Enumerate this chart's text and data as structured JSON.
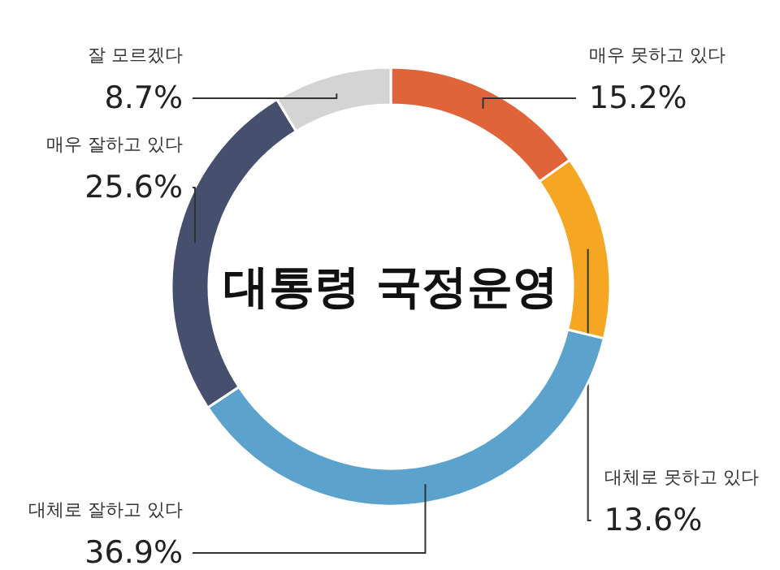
{
  "chart_data": {
    "type": "donut",
    "title": "대통령 국정운영",
    "categories": [
      "매우 못하고 있다",
      "대체로 못하고 있다",
      "대체로 잘하고 있다",
      "매우 잘하고 있다",
      "잘 모르겠다"
    ],
    "values": [
      15.2,
      13.6,
      36.9,
      25.6,
      8.7
    ],
    "colors": [
      "#e0643a",
      "#f5a623",
      "#5ba3cc",
      "#46506e",
      "#d4d4d4"
    ],
    "value_labels": [
      "15.2%",
      "13.6%",
      "36.9%",
      "25.6%",
      "8.7%"
    ],
    "legend": false
  }
}
